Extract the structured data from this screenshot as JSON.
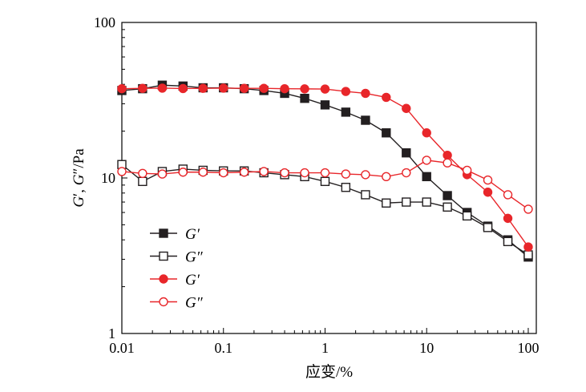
{
  "chart_data": {
    "type": "line",
    "x_scale": "log",
    "y_scale": "log",
    "xlim": [
      0.01,
      120
    ],
    "ylim": [
      1,
      100
    ],
    "xlabel": "应变/%",
    "ylabel": "G′, G″/Pa",
    "x_ticks": [
      0.01,
      0.1,
      1,
      10,
      100
    ],
    "x_tick_labels": [
      "0.01",
      "0.1",
      "1",
      "10",
      "100"
    ],
    "y_ticks": [
      1,
      10,
      100
    ],
    "y_tick_labels": [
      "1",
      "10",
      "100"
    ],
    "grid": false,
    "legend_position": "lower-left",
    "series": [
      {
        "name": "G′",
        "color": "#231f20",
        "marker": "square-filled",
        "x": [
          0.01,
          0.016,
          0.025,
          0.04,
          0.063,
          0.1,
          0.16,
          0.25,
          0.4,
          0.63,
          1.0,
          1.6,
          2.5,
          4.0,
          6.3,
          10.0,
          16.0,
          25.0,
          40.0,
          63.0,
          100.0
        ],
        "y": [
          36.5,
          37.5,
          39.5,
          39.0,
          38.0,
          38.0,
          37.5,
          36.5,
          35.0,
          32.5,
          29.5,
          26.5,
          23.5,
          19.5,
          14.5,
          10.2,
          7.7,
          6.0,
          4.9,
          4.0,
          3.1
        ]
      },
      {
        "name": "G″",
        "color": "#231f20",
        "marker": "square-open",
        "x": [
          0.01,
          0.016,
          0.025,
          0.04,
          0.063,
          0.1,
          0.16,
          0.25,
          0.4,
          0.63,
          1.0,
          1.6,
          2.5,
          4.0,
          6.3,
          10.0,
          16.0,
          25.0,
          40.0,
          63.0,
          100.0
        ],
        "y": [
          12.2,
          9.5,
          11.0,
          11.4,
          11.2,
          11.1,
          11.1,
          10.8,
          10.5,
          10.2,
          9.5,
          8.7,
          7.8,
          6.9,
          7.0,
          7.0,
          6.5,
          5.7,
          4.8,
          3.9,
          3.2
        ]
      },
      {
        "name": "G′",
        "color": "#e8262a",
        "marker": "circle-filled",
        "x": [
          0.01,
          0.016,
          0.025,
          0.04,
          0.063,
          0.1,
          0.16,
          0.25,
          0.4,
          0.63,
          1.0,
          1.6,
          2.5,
          4.0,
          6.3,
          10.0,
          16.0,
          25.0,
          40.0,
          63.0,
          100.0
        ],
        "y": [
          37.5,
          37.7,
          37.8,
          37.6,
          37.7,
          37.8,
          37.7,
          37.7,
          37.5,
          37.4,
          37.3,
          36.0,
          35.0,
          33.0,
          28.0,
          19.5,
          14.0,
          10.5,
          8.1,
          5.5,
          3.6
        ]
      },
      {
        "name": "G″",
        "color": "#e8262a",
        "marker": "circle-open",
        "x": [
          0.01,
          0.016,
          0.025,
          0.04,
          0.063,
          0.1,
          0.16,
          0.25,
          0.4,
          0.63,
          1.0,
          1.6,
          2.5,
          4.0,
          6.3,
          10.0,
          16.0,
          25.0,
          40.0,
          63.0,
          100.0
        ],
        "y": [
          11.0,
          10.7,
          10.6,
          10.9,
          10.9,
          10.8,
          10.9,
          11.0,
          10.8,
          10.8,
          10.8,
          10.6,
          10.5,
          10.2,
          10.8,
          13.0,
          12.5,
          11.2,
          9.7,
          7.8,
          6.3
        ]
      }
    ]
  }
}
